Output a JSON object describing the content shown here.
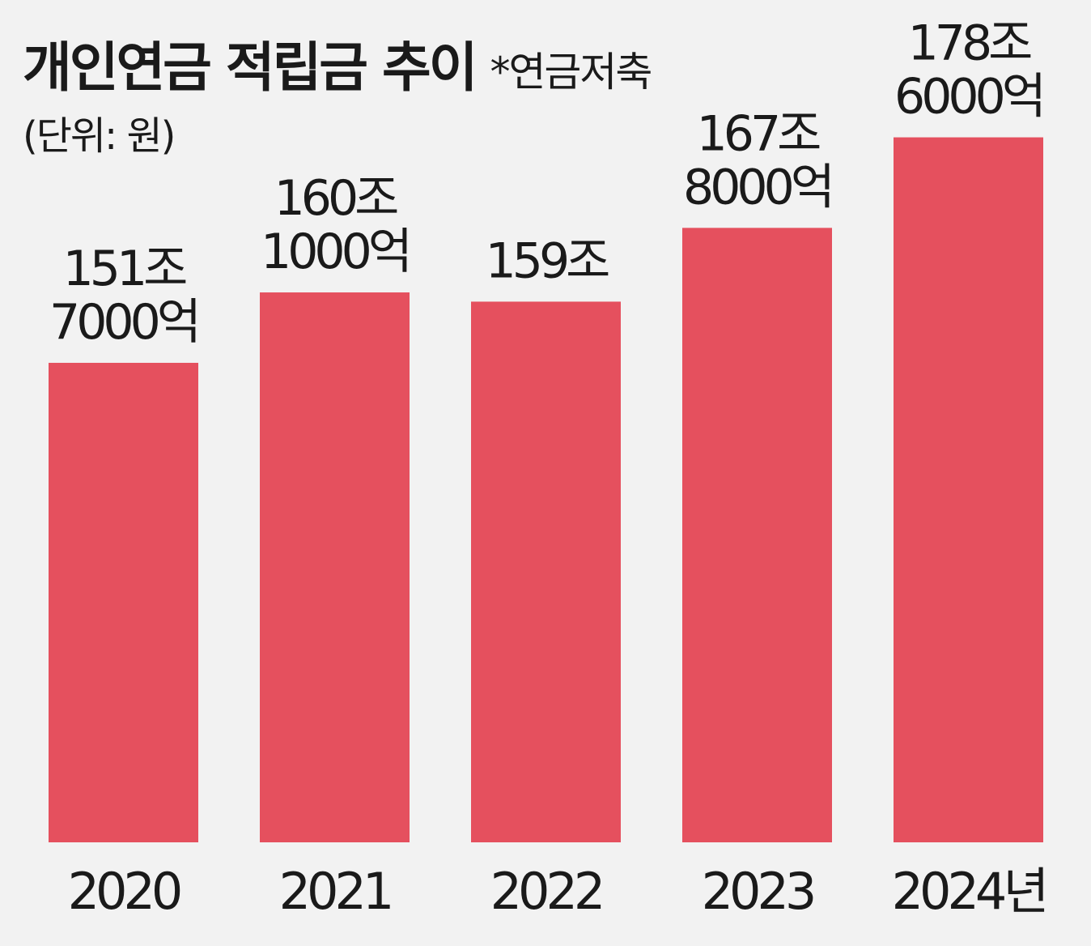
{
  "chart_data": {
    "type": "bar",
    "title": "개인연금 적립금 추이",
    "note": "*연금저축",
    "unit": "(단위: 원)",
    "categories": [
      "2020",
      "2021",
      "2022",
      "2023",
      "2024년"
    ],
    "values": [
      151.7,
      160.1,
      159.0,
      167.8,
      178.6
    ],
    "value_unit": "조원",
    "data_labels": [
      [
        "151조",
        "7000억"
      ],
      [
        "160조",
        "1000억"
      ],
      [
        "159조"
      ],
      [
        "167조",
        "8000억"
      ],
      [
        "178조",
        "6000억"
      ]
    ],
    "bar_color": "#e5505e",
    "background": "#f2f2f2",
    "grid": false,
    "legend": "none"
  }
}
